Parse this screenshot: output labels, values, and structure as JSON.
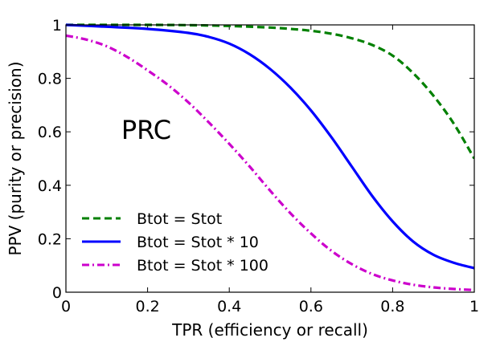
{
  "chart_data": {
    "type": "line",
    "title": "",
    "annotation": "PRC",
    "xlabel": "TPR (efficiency or recall)",
    "ylabel": "PPV (purity or precision)",
    "xlim": [
      0,
      1
    ],
    "ylim": [
      0,
      1
    ],
    "x_ticks": [
      "0",
      "0.2",
      "0.4",
      "0.6",
      "0.8",
      "1"
    ],
    "y_ticks": [
      "0",
      "0.2",
      "0.4",
      "0.6",
      "0.8",
      "1"
    ],
    "grid": false,
    "legend_position": "lower-left",
    "series": [
      {
        "name": "Btot = Stot",
        "color": "#008000",
        "style": "dashed",
        "x": [
          0,
          0.1,
          0.2,
          0.3,
          0.4,
          0.5,
          0.55,
          0.6,
          0.65,
          0.7,
          0.75,
          0.8,
          0.85,
          0.9,
          0.95,
          1.0
        ],
        "y": [
          1.0,
          1.0,
          1.0,
          0.999,
          0.996,
          0.99,
          0.985,
          0.978,
          0.967,
          0.95,
          0.925,
          0.885,
          0.82,
          0.735,
          0.63,
          0.5
        ]
      },
      {
        "name": "Btot = Stot * 10",
        "color": "#0000ff",
        "style": "solid",
        "x": [
          0,
          0.1,
          0.2,
          0.3,
          0.35,
          0.4,
          0.45,
          0.5,
          0.55,
          0.6,
          0.65,
          0.7,
          0.75,
          0.8,
          0.85,
          0.9,
          0.95,
          1.0
        ],
        "y": [
          1.0,
          0.993,
          0.985,
          0.97,
          0.955,
          0.93,
          0.89,
          0.835,
          0.765,
          0.68,
          0.58,
          0.47,
          0.36,
          0.265,
          0.19,
          0.14,
          0.11,
          0.09
        ]
      },
      {
        "name": "Btot = Stot * 100",
        "color": "#cc00cc",
        "style": "dashdot",
        "x": [
          0,
          0.05,
          0.1,
          0.15,
          0.2,
          0.25,
          0.3,
          0.35,
          0.4,
          0.45,
          0.5,
          0.55,
          0.6,
          0.65,
          0.7,
          0.75,
          0.8,
          0.85,
          0.9,
          0.95,
          1.0
        ],
        "y": [
          0.96,
          0.945,
          0.92,
          0.88,
          0.83,
          0.775,
          0.71,
          0.635,
          0.555,
          0.47,
          0.38,
          0.295,
          0.22,
          0.155,
          0.105,
          0.068,
          0.044,
          0.028,
          0.018,
          0.012,
          0.008
        ]
      }
    ]
  }
}
